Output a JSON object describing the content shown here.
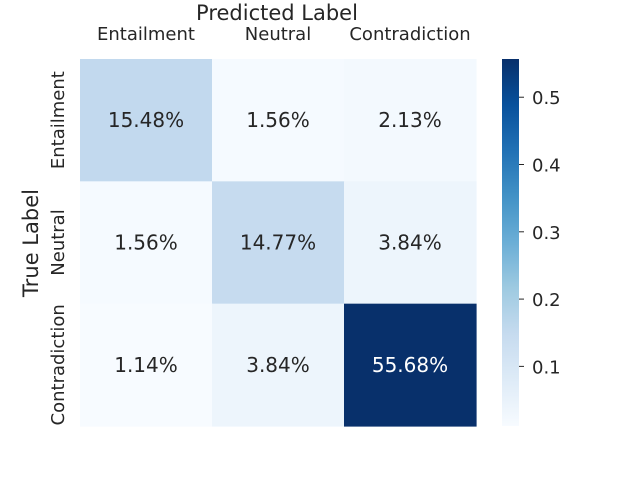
{
  "chart_data": {
    "type": "heatmap",
    "title": "",
    "xlabel": "Predicted Label",
    "ylabel": "True Label",
    "x_categories": [
      "Entailment",
      "Neutral",
      "Contradiction"
    ],
    "y_categories": [
      "Entailment",
      "Neutral",
      "Contradiction"
    ],
    "values": [
      [
        0.1548,
        0.0156,
        0.0213
      ],
      [
        0.0156,
        0.1477,
        0.0384
      ],
      [
        0.0114,
        0.0384,
        0.5568
      ]
    ],
    "annotations": [
      [
        "15.48%",
        "1.56%",
        "2.13%"
      ],
      [
        "1.56%",
        "14.77%",
        "3.84%"
      ],
      [
        "1.14%",
        "3.84%",
        "55.68%"
      ]
    ],
    "colormap": "Blues",
    "color_range": [
      0.0114,
      0.5568
    ],
    "colorbar_ticks": [
      0.1,
      0.2,
      0.3,
      0.4,
      0.5
    ],
    "colorbar_tick_labels": [
      "0.1",
      "0.2",
      "0.3",
      "0.4",
      "0.5"
    ],
    "x_axis_position": "top",
    "grid": false,
    "colors": {
      "low": "#f7fbff",
      "high": "#08306b",
      "text_dark": "#262626",
      "text_light": "#ffffff"
    }
  }
}
